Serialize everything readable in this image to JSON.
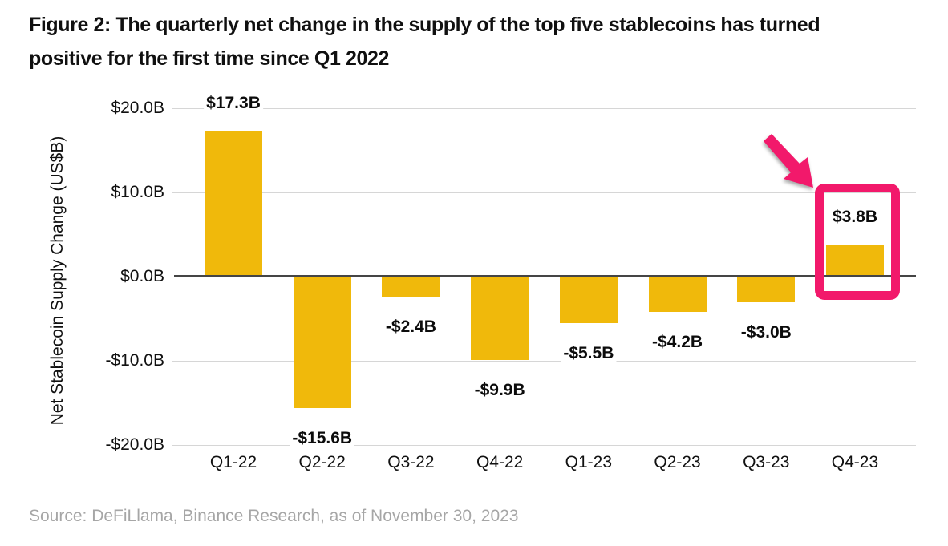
{
  "figure": {
    "title_line1": "Figure 2: The quarterly net change in the supply of the top five stablecoins has turned",
    "title_line2": "positive for the first time since Q1 2022",
    "source": "Source: DeFiLlama, Binance Research, as of November 30, 2023"
  },
  "chart_data": {
    "type": "bar",
    "title": "Figure 2: The quarterly net change in the supply of the top five stablecoins has turned positive for the first time since Q1 2022",
    "categories": [
      "Q1-22",
      "Q2-22",
      "Q3-22",
      "Q4-22",
      "Q1-23",
      "Q2-23",
      "Q3-23",
      "Q4-23"
    ],
    "values": [
      17.3,
      -15.6,
      -2.4,
      -9.9,
      -5.5,
      -4.2,
      -3.0,
      3.8
    ],
    "data_labels": [
      "$17.3B",
      "-$15.6B",
      "-$2.4B",
      "-$9.9B",
      "-$5.5B",
      "-$4.2B",
      "-$3.0B",
      "$3.8B"
    ],
    "xlabel": "",
    "ylabel": "Net Stablecoin Supply Change (US$B)",
    "ylim": [
      -20,
      20
    ],
    "yticks": [
      {
        "value": 20,
        "label": "$20.0B"
      },
      {
        "value": 10,
        "label": "$10.0B"
      },
      {
        "value": 0,
        "label": "$0.0B"
      },
      {
        "value": -10,
        "label": "-$10.0B"
      },
      {
        "value": -20,
        "label": "-$20.0B"
      }
    ],
    "grid": true,
    "legend_position": "none",
    "bar_color": "#F0B90B",
    "highlight": {
      "category": "Q4-23",
      "value_label": "$3.8B",
      "annotation": "pink rounded rectangle with arrow pointing at Q4-23 bar",
      "color": "#F2196B"
    }
  }
}
